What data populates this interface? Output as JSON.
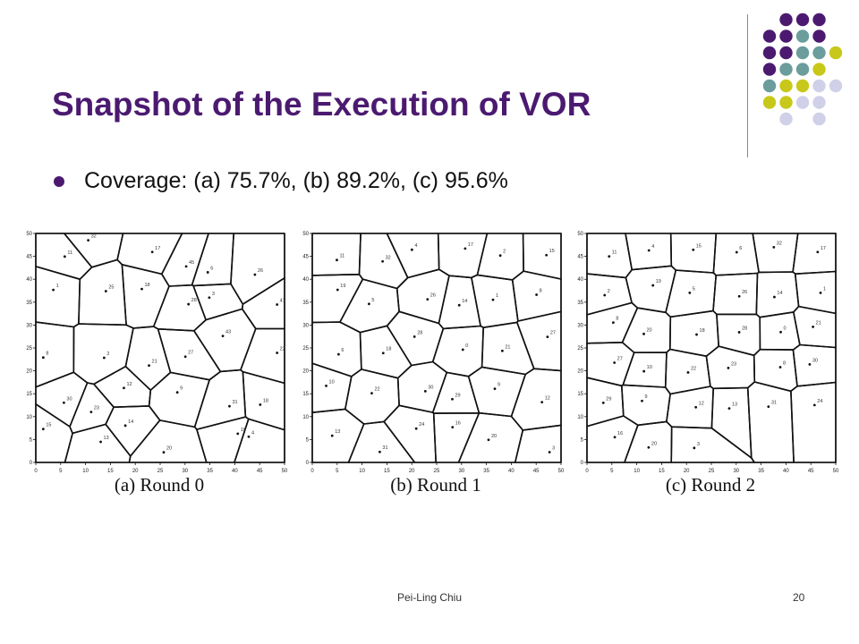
{
  "slide": {
    "title": "Snapshot of the Execution of VOR",
    "bullet": "Coverage:  (a) 75.7%, (b) 89.2%, (c) 95.6%",
    "footer_author": "Pei-Ling Chiu",
    "page_number": "20"
  },
  "decoration": {
    "colors": {
      "purple": "#4b1a70",
      "teal": "#6a9d9c",
      "olive": "#c8c81a",
      "lavender": "#d0d0e8"
    }
  },
  "figures": [
    {
      "caption": "(a) Round 0",
      "x_ticks": [
        "0",
        "5",
        "10",
        "15",
        "20",
        "25",
        "30",
        "35",
        "40",
        "45",
        "50"
      ],
      "y_ticks": [
        "50",
        "45",
        "40",
        "35",
        "30",
        "25",
        "20",
        "15",
        "10",
        "5",
        "0"
      ],
      "node_labels": [
        "11",
        "32",
        "17",
        "45",
        "6",
        "26",
        "1",
        "25",
        "18",
        "28",
        "3",
        "41",
        "8",
        "2",
        "21",
        "27",
        "43",
        "22",
        "30",
        "23",
        "12",
        "9",
        "31",
        "18",
        "15",
        "13",
        "14",
        "20",
        "10",
        "4"
      ]
    },
    {
      "caption": "(b) Round 1",
      "x_ticks": [
        "0",
        "5",
        "10",
        "15",
        "20",
        "25",
        "30",
        "35",
        "40",
        "45",
        "50"
      ],
      "y_ticks": [
        "50",
        "45",
        "40",
        "35",
        "30",
        "25",
        "20",
        "15",
        "10",
        "5",
        "0"
      ],
      "node_labels": [
        "11",
        "32",
        "4",
        "17",
        "2",
        "15",
        "19",
        "5",
        "26",
        "14",
        "1",
        "8",
        "6",
        "18",
        "28",
        "0",
        "21",
        "27",
        "10",
        "22",
        "30",
        "29",
        "9",
        "12",
        "13",
        "31",
        "24",
        "16",
        "20",
        "3"
      ]
    },
    {
      "caption": "(c) Round 2",
      "x_ticks": [
        "0",
        "5",
        "10",
        "15",
        "20",
        "25",
        "30",
        "35",
        "40",
        "45",
        "50"
      ],
      "y_ticks": [
        "50",
        "45",
        "40",
        "35",
        "30",
        "25",
        "20",
        "15",
        "10",
        "5",
        "0"
      ],
      "node_labels": [
        "11",
        "4",
        "15",
        "6",
        "32",
        "17",
        "2",
        "19",
        "5",
        "26",
        "14",
        "1",
        "8",
        "20",
        "18",
        "28",
        "0",
        "21",
        "27",
        "10",
        "22",
        "23",
        "8",
        "30",
        "29",
        "9",
        "12",
        "13",
        "31",
        "24",
        "16",
        "20",
        "3"
      ]
    }
  ]
}
